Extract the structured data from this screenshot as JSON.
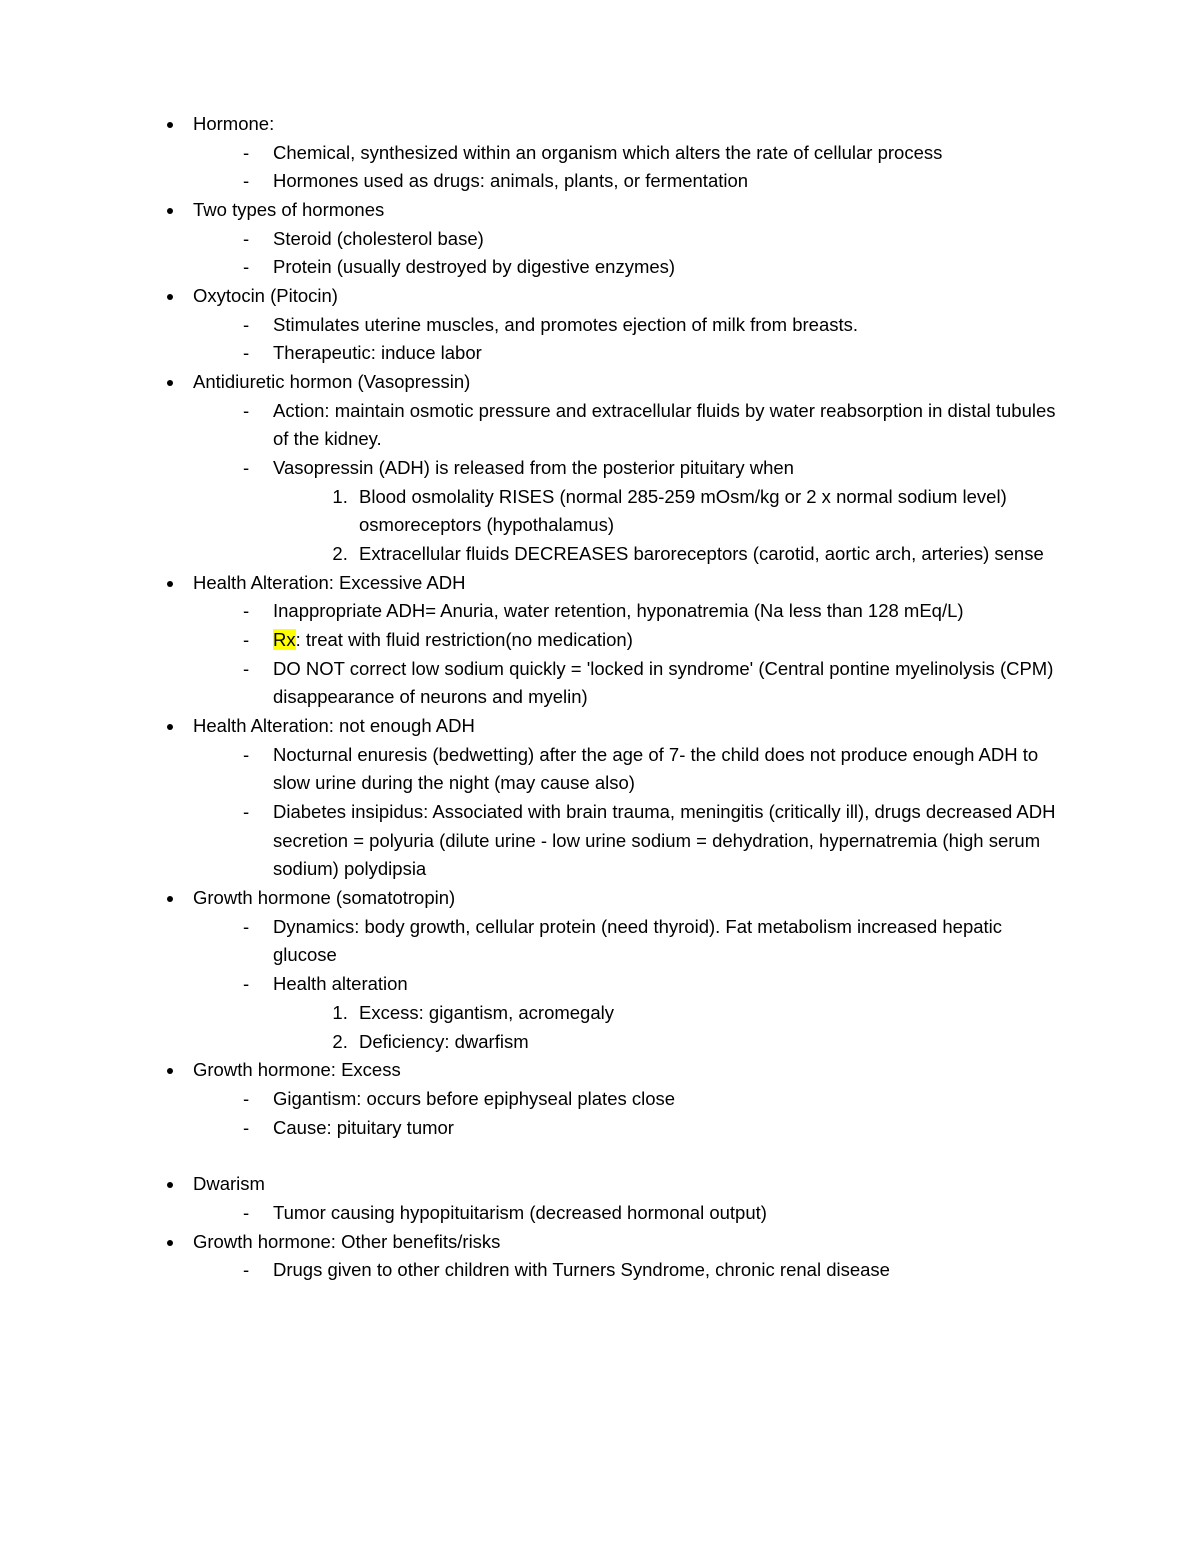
{
  "colors": {
    "text": "#000000",
    "background": "#ffffff",
    "highlight": "#ffff00"
  },
  "typography": {
    "font_family": "Arial",
    "font_size_pt": 14,
    "line_height": 1.55
  },
  "items": [
    {
      "text": "Hormone:",
      "subs": [
        {
          "text": "Chemical, synthesized within an organism which alters the rate of cellular process"
        },
        {
          "text": "Hormones used as drugs: animals, plants, or fermentation"
        }
      ]
    },
    {
      "text": "Two types of hormones",
      "subs": [
        {
          "text": "Steroid (cholesterol base)"
        },
        {
          "text": "Protein (usually destroyed by digestive enzymes)"
        }
      ]
    },
    {
      "text": "Oxytocin (Pitocin)",
      "subs": [
        {
          "text": "Stimulates uterine muscles, and promotes ejection of milk from breasts."
        },
        {
          "text": "Therapeutic: induce labor"
        }
      ]
    },
    {
      "text": "Antidiuretic hormon (Vasopressin)",
      "subs": [
        {
          "text": "Action: maintain osmotic pressure and extracellular fluids by water reabsorption in distal tubules of the kidney."
        },
        {
          "text": "Vasopressin (ADH) is released from the posterior pituitary when",
          "ordered": [
            "Blood osmolality RISES (normal 285-259 mOsm/kg or 2 x normal sodium level) osmoreceptors (hypothalamus)",
            "Extracellular fluids DECREASES baroreceptors (carotid, aortic arch, arteries) sense"
          ]
        }
      ]
    },
    {
      "text": "Health Alteration: Excessive ADH",
      "subs": [
        {
          "text": "Inappropriate ADH= Anuria, water retention, hyponatremia (Na less than 128 mEq/L)"
        },
        {
          "highlight": "Rx",
          "text_after": ": treat with fluid restriction(no medication)"
        },
        {
          "text": "DO NOT correct low sodium quickly = 'locked in syndrome' (Central pontine myelinolysis (CPM) disappearance of neurons and myelin)"
        }
      ]
    },
    {
      "text": "Health Alteration: not enough ADH",
      "subs": [
        {
          "text": "Nocturnal enuresis (bedwetting) after the age of 7- the child does not produce enough ADH to slow urine during the night (may cause also)"
        },
        {
          "text": "Diabetes insipidus: Associated with brain trauma, meningitis (critically ill), drugs decreased ADH secretion = polyuria (dilute urine - low urine sodium = dehydration, hypernatremia (high serum sodium) polydipsia"
        }
      ]
    },
    {
      "text": "Growth hormone (somatotropin)",
      "subs": [
        {
          "text": "Dynamics: body growth, cellular protein (need thyroid). Fat metabolism increased hepatic glucose"
        },
        {
          "text": "Health alteration",
          "ordered": [
            "Excess: gigantism, acromegaly",
            "Deficiency: dwarfism"
          ]
        }
      ]
    },
    {
      "text": "Growth hormone: Excess",
      "subs": [
        {
          "text": "Gigantism: occurs before epiphyseal plates close"
        },
        {
          "text": "Cause: pituitary tumor"
        }
      ],
      "gap_after": true
    },
    {
      "text": "Dwarism",
      "subs": [
        {
          "text": "Tumor causing hypopituitarism (decreased hormonal output)"
        }
      ]
    },
    {
      "text": "Growth hormone: Other benefits/risks",
      "subs": [
        {
          "text": "Drugs given to other children with Turners Syndrome, chronic renal disease"
        }
      ]
    }
  ]
}
